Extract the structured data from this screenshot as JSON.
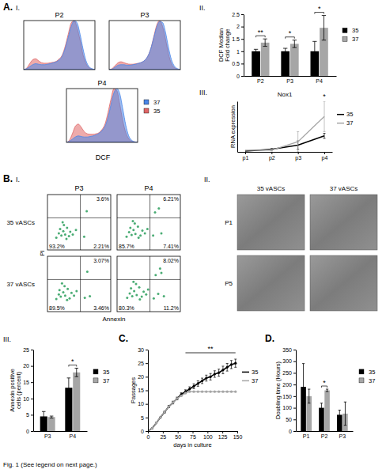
{
  "caption": "Fig. 1 (See legend on next page.)",
  "chart_data": [
    {
      "type": "area",
      "panel_label": "A.",
      "subpanel_label": "I.",
      "xlabel": "DCF",
      "tick_labels": false,
      "legend": "right",
      "x": [
        0,
        1,
        2,
        3,
        4,
        5,
        6,
        7,
        8,
        9,
        10,
        11,
        12,
        13,
        14,
        15,
        16,
        17,
        18,
        19,
        20,
        21,
        22,
        23,
        24
      ],
      "xlim": [
        0,
        24
      ],
      "ylim": [
        0,
        100
      ],
      "series": [
        {
          "name": "37",
          "color": "#4a86e8"
        },
        {
          "name": "35",
          "color": "#e06666"
        }
      ],
      "panels": [
        {
          "title": "P2",
          "series_values": [
            [
              0,
              2,
              6,
              10,
              12,
              11,
              10,
              10,
              11,
              12,
              14,
              16,
              20,
              28,
              44,
              66,
              88,
              100,
              95,
              72,
              42,
              18,
              6,
              2,
              0
            ],
            [
              0,
              3,
              12,
              20,
              22,
              18,
              14,
              13,
              13,
              14,
              15,
              17,
              22,
              30,
              48,
              72,
              95,
              100,
              85,
              60,
              30,
              12,
              4,
              1,
              0
            ]
          ]
        },
        {
          "title": "P3",
          "series_values": [
            [
              0,
              1,
              5,
              9,
              10,
              10,
              9,
              9,
              10,
              11,
              13,
              15,
              19,
              27,
              42,
              64,
              86,
              98,
              96,
              76,
              45,
              20,
              7,
              2,
              0
            ],
            [
              0,
              2,
              8,
              14,
              16,
              14,
              12,
              11,
              11,
              12,
              13,
              15,
              19,
              27,
              42,
              66,
              90,
              100,
              88,
              62,
              32,
              12,
              4,
              1,
              0
            ]
          ]
        },
        {
          "title": "P4",
          "series_values": [
            [
              0,
              2,
              6,
              10,
              12,
              11,
              10,
              10,
              11,
              12,
              14,
              17,
              22,
              30,
              46,
              70,
              92,
              100,
              90,
              62,
              32,
              12,
              4,
              1,
              0
            ],
            [
              0,
              4,
              16,
              30,
              34,
              28,
              20,
              16,
              15,
              15,
              16,
              18,
              24,
              34,
              55,
              80,
              100,
              96,
              70,
              40,
              18,
              7,
              2,
              1,
              0
            ]
          ]
        }
      ]
    },
    {
      "type": "bar",
      "subpanel_label": "II.",
      "ylabel": "DCF Median Fold change",
      "categories": [
        "P2",
        "P3",
        "P4"
      ],
      "ylim": [
        0,
        2.5
      ],
      "yticks": [
        0,
        0.5,
        1,
        1.5,
        2,
        2.5
      ],
      "legend": "right",
      "series": [
        {
          "name": "35",
          "color": "#000000",
          "values": [
            1,
            1,
            1
          ],
          "errors": [
            0.08,
            0.12,
            0.4
          ]
        },
        {
          "name": "37",
          "color": "#a6a6a6",
          "values": [
            1.35,
            1.3,
            1.95
          ],
          "errors": [
            0.15,
            0.15,
            0.5
          ]
        }
      ],
      "annotations": [
        {
          "text": "**",
          "category": "P2"
        },
        {
          "text": "*",
          "category": "P3"
        },
        {
          "text": "*",
          "category": "P4"
        }
      ]
    },
    {
      "type": "line",
      "subpanel_label": "III.",
      "title": "Nox1",
      "ylabel": "RNA expression",
      "categories": [
        "p1",
        "p2",
        "p3",
        "p4"
      ],
      "ylim": [
        0,
        6
      ],
      "tick_labels": "x",
      "legend": "right",
      "series": [
        {
          "name": "35",
          "color": "#000000",
          "values": [
            0.1,
            0.3,
            0.8,
            1.9
          ],
          "errors": [
            0,
            0.1,
            0.5,
            0.3
          ]
        },
        {
          "name": "37",
          "color": "#a6a6a6",
          "values": [
            0.2,
            0.2,
            1.2,
            4.2
          ],
          "errors": [
            0,
            0.1,
            1.2,
            1.8
          ]
        }
      ],
      "annotations": [
        {
          "text": "*",
          "category": "p4"
        }
      ]
    },
    {
      "type": "scatter",
      "panel_label": "B.",
      "subpanel_label": "I.",
      "xlabel": "Annexin",
      "ylabel": "PI",
      "columns": [
        "P3",
        "P4"
      ],
      "rows": [
        "35 vASCs",
        "37 vASCs"
      ],
      "tick_labels": false,
      "color": "#2a9d5c",
      "xlim": [
        0,
        100
      ],
      "ylim": [
        0,
        100
      ],
      "gate_x": 52,
      "gate_y": 58,
      "plots": [
        {
          "x": [
            14,
            18,
            22,
            25,
            28,
            31,
            34,
            20,
            26,
            36,
            40,
            24,
            30,
            45,
            62,
            58
          ],
          "y": [
            22,
            30,
            26,
            34,
            28,
            40,
            25,
            38,
            45,
            33,
            28,
            50,
            20,
            36,
            70,
            24
          ],
          "quadrant_values": [
            3.6,
            93.2,
            2.21
          ],
          "quadrant_value_labels": [
            "3.6%",
            "93.2%",
            "2.21%"
          ]
        },
        {
          "x": [
            15,
            19,
            23,
            26,
            29,
            33,
            37,
            21,
            28,
            40,
            44,
            25,
            34,
            48,
            60,
            66,
            57,
            70
          ],
          "y": [
            24,
            32,
            27,
            36,
            29,
            42,
            26,
            40,
            48,
            35,
            30,
            52,
            22,
            38,
            68,
            75,
            26,
            30
          ],
          "quadrant_values": [
            6.21,
            85.7,
            7.41
          ],
          "quadrant_value_labels": [
            "6.21%",
            "85.7%",
            "7.41%"
          ]
        },
        {
          "x": [
            14,
            18,
            21,
            25,
            28,
            32,
            35,
            19,
            27,
            38,
            42,
            23,
            31,
            46,
            63,
            59,
            67
          ],
          "y": [
            23,
            31,
            27,
            35,
            29,
            41,
            24,
            39,
            46,
            34,
            29,
            51,
            21,
            37,
            72,
            25,
            28
          ],
          "quadrant_values": [
            3.07,
            89.5,
            3.46
          ],
          "quadrant_value_labels": [
            "3.07%",
            "89.5%",
            "3.46%"
          ]
        },
        {
          "x": [
            16,
            20,
            24,
            27,
            31,
            35,
            39,
            22,
            30,
            42,
            46,
            26,
            36,
            49,
            61,
            68,
            58,
            65,
            74,
            70
          ],
          "y": [
            25,
            33,
            28,
            37,
            30,
            44,
            27,
            42,
            50,
            36,
            31,
            54,
            22,
            40,
            66,
            78,
            24,
            32,
            28,
            70
          ],
          "quadrant_values": [
            8.02,
            80.3,
            11.2
          ],
          "quadrant_value_labels": [
            "8.02%",
            "80.3%",
            "11.2%"
          ]
        }
      ]
    },
    {
      "type": "image",
      "subpanel_label": "II.",
      "columns": [
        "35 vASCs",
        "37 vASCs"
      ],
      "rows": [
        "P1",
        "P5"
      ]
    },
    {
      "type": "bar",
      "subpanel_label": "III.",
      "ylabel": "Annexin positive cells (percent)",
      "categories": [
        "P3",
        "P4"
      ],
      "ylim": [
        0,
        25
      ],
      "yticks": [
        0,
        5,
        10,
        15,
        20,
        25
      ],
      "legend": "right",
      "series": [
        {
          "name": "35",
          "color": "#000000",
          "values": [
            4.5,
            13.3
          ],
          "errors": [
            1.5,
            3
          ]
        },
        {
          "name": "37",
          "color": "#a6a6a6",
          "values": [
            4.3,
            18
          ],
          "errors": [
            0.3,
            1.3
          ]
        }
      ],
      "annotations": [
        {
          "text": "*",
          "category": "P4"
        }
      ]
    },
    {
      "type": "line",
      "panel_label": "C.",
      "xlabel": "days in culture",
      "ylabel": "Passages",
      "x": [
        0,
        7,
        14,
        21,
        28,
        35,
        42,
        49,
        56,
        63,
        70,
        77,
        84,
        91,
        98,
        105,
        112,
        119,
        126,
        133,
        140,
        147
      ],
      "xlim": [
        0,
        150
      ],
      "xticks": [
        0,
        25,
        50,
        75,
        100,
        125,
        150
      ],
      "ylim": [
        0,
        30
      ],
      "yticks": [
        0,
        5,
        10,
        15,
        20,
        25,
        30
      ],
      "legend": "right",
      "series": [
        {
          "name": "35",
          "color": "#000000",
          "marker": "circle",
          "values": [
            0,
            1,
            3,
            5,
            7,
            9,
            10.5,
            12,
            13.5,
            14.5,
            15.5,
            16.5,
            17.5,
            18.5,
            19.5,
            20,
            21,
            21.5,
            22.5,
            23.5,
            24.5,
            25
          ],
          "errors": [
            0,
            0,
            0,
            0,
            0.3,
            0.4,
            0.5,
            0.5,
            0.6,
            0.7,
            0.8,
            0.9,
            1,
            1,
            1.1,
            1.2,
            1.2,
            1.3,
            1.4,
            1.4,
            1.5,
            1.5
          ]
        },
        {
          "name": "37",
          "color": "#a6a6a6",
          "marker": "circle",
          "values": [
            0,
            1,
            3,
            5,
            7,
            9,
            10.5,
            12,
            13,
            14,
            14.5,
            14.5,
            14.5,
            14.5,
            14.5,
            14.5,
            14.5,
            14.5,
            14.5,
            14.5,
            14.5,
            14.5
          ]
        }
      ],
      "annotations": [
        {
          "text": "**",
          "x": [
            63,
            147
          ]
        }
      ]
    },
    {
      "type": "bar",
      "panel_label": "D.",
      "ylabel": "Doubling time (Hours)",
      "categories": [
        "P1",
        "P2",
        "P3"
      ],
      "ylim": [
        0,
        350
      ],
      "yticks": [
        0,
        50,
        100,
        150,
        200,
        250,
        300,
        350
      ],
      "legend": "right",
      "series": [
        {
          "name": "35",
          "color": "#000000",
          "values": [
            190,
            100,
            70
          ],
          "errors": [
            100,
            20,
            20
          ]
        },
        {
          "name": "37",
          "color": "#a6a6a6",
          "values": [
            150,
            175,
            75
          ],
          "errors": [
            30,
            5,
            50
          ]
        }
      ],
      "annotations": [
        {
          "text": "*",
          "category": "P2"
        }
      ]
    }
  ]
}
